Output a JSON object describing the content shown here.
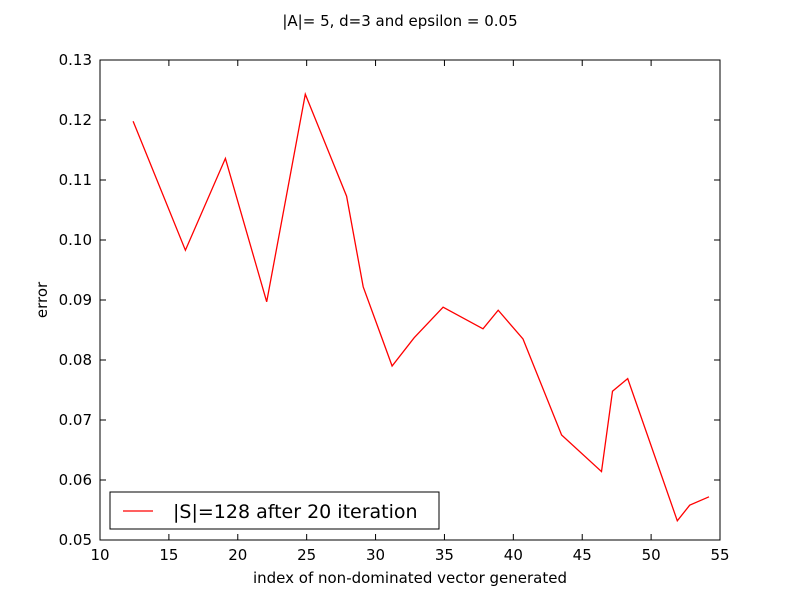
{
  "chart_data": {
    "type": "line",
    "title": "|A|= 5, d=3 and epsilon = 0.05",
    "xlabel": "index of non-dominated vector generated",
    "ylabel": "error",
    "xlim": [
      10,
      55
    ],
    "ylim": [
      0.05,
      0.13
    ],
    "xticks": [
      "10",
      "15",
      "20",
      "25",
      "30",
      "35",
      "40",
      "45",
      "50",
      "55"
    ],
    "yticks": [
      "0.05",
      "0.06",
      "0.07",
      "0.08",
      "0.09",
      "0.10",
      "0.11",
      "0.12",
      "0.13"
    ],
    "grid": false,
    "legend_position": "lower-left",
    "series": [
      {
        "name": "|S|=128 after 20 iteration",
        "color": "#ff0000",
        "x": [
          12.4,
          16.2,
          19.1,
          22.1,
          24.9,
          27.9,
          29.1,
          31.2,
          32.8,
          34.9,
          37.8,
          38.9,
          40.7,
          43.5,
          46.4,
          47.2,
          48.3,
          51.9,
          52.8,
          54.2
        ],
        "y": [
          0.1198,
          0.0983,
          0.1136,
          0.0897,
          0.1243,
          0.1073,
          0.0922,
          0.079,
          0.0837,
          0.0888,
          0.0852,
          0.0883,
          0.0835,
          0.0675,
          0.0614,
          0.0748,
          0.0769,
          0.0532,
          0.0558,
          0.0572
        ]
      }
    ]
  }
}
